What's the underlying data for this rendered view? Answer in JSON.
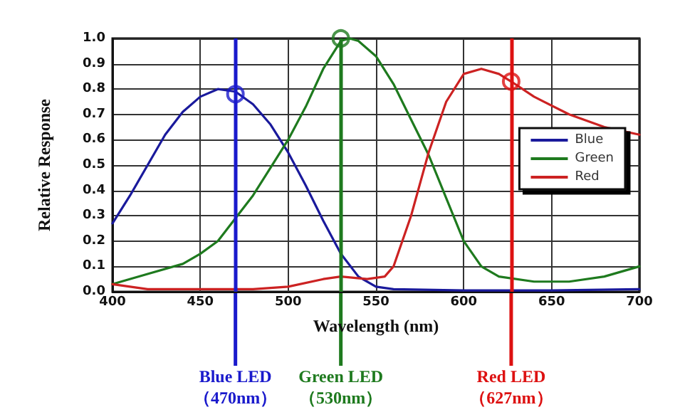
{
  "chart_data": {
    "type": "line",
    "xlabel": "Wavelength (nm)",
    "ylabel": "Relative Response",
    "xlim": [
      400,
      700
    ],
    "xticks": [
      400,
      450,
      500,
      550,
      600,
      650,
      700
    ],
    "ylim": [
      0,
      1
    ],
    "yticks": [
      {
        "value": 0,
        "label": "0.0"
      },
      0.1,
      0.2,
      0.3,
      0.4,
      0.5,
      0.6,
      0.7,
      0.8,
      0.9,
      {
        "value": 1,
        "label": "1.0"
      }
    ],
    "grid": true,
    "legend": "right",
    "marker": "none",
    "line_style": "solid",
    "series": [
      {
        "name": "Blue",
        "color": "#1a1a9c",
        "x": [
          400,
          410,
          420,
          430,
          440,
          450,
          460,
          470,
          480,
          490,
          500,
          510,
          520,
          530,
          540,
          550,
          560,
          600,
          650,
          700
        ],
        "values": [
          0.27,
          0.38,
          0.5,
          0.62,
          0.71,
          0.77,
          0.8,
          0.79,
          0.74,
          0.66,
          0.55,
          0.42,
          0.28,
          0.15,
          0.06,
          0.02,
          0.01,
          0.005,
          0.005,
          0.01
        ]
      },
      {
        "name": "Green",
        "color": "#1e7a1e",
        "x": [
          400,
          420,
          440,
          450,
          460,
          470,
          480,
          490,
          500,
          510,
          520,
          530,
          535,
          540,
          550,
          560,
          570,
          580,
          590,
          600,
          610,
          620,
          640,
          660,
          680,
          700
        ],
        "values": [
          0.03,
          0.07,
          0.11,
          0.15,
          0.2,
          0.29,
          0.38,
          0.49,
          0.6,
          0.73,
          0.88,
          0.99,
          1.0,
          0.99,
          0.93,
          0.82,
          0.68,
          0.54,
          0.37,
          0.2,
          0.1,
          0.06,
          0.04,
          0.04,
          0.06,
          0.1
        ]
      },
      {
        "name": "Red",
        "color": "#cc2222",
        "x": [
          400,
          420,
          450,
          480,
          500,
          520,
          530,
          545,
          555,
          560,
          570,
          580,
          590,
          600,
          610,
          620,
          627,
          640,
          660,
          680,
          700
        ],
        "values": [
          0.03,
          0.01,
          0.01,
          0.01,
          0.02,
          0.05,
          0.06,
          0.05,
          0.06,
          0.1,
          0.3,
          0.55,
          0.75,
          0.86,
          0.88,
          0.86,
          0.83,
          0.77,
          0.7,
          0.65,
          0.62
        ]
      },
      {
        "type": "scatter",
        "marker": "circle",
        "x": [
          470,
          530,
          627
        ],
        "values": [
          0.78,
          1.0,
          0.83
        ],
        "colors": [
          "#1a1acc",
          "#1e7a1e",
          "#dd1111"
        ]
      }
    ],
    "ref_lines": [
      {
        "axis": "x",
        "value": 470,
        "label": "Blue LED\n（470nm）",
        "color": "#1a1acc"
      },
      {
        "axis": "x",
        "value": 530,
        "label": "Green LED\n（530nm）",
        "color": "#1e7a1e"
      },
      {
        "axis": "x",
        "value": 627,
        "label": "Red LED\n（627nm）",
        "color": "#dd1111"
      }
    ]
  }
}
